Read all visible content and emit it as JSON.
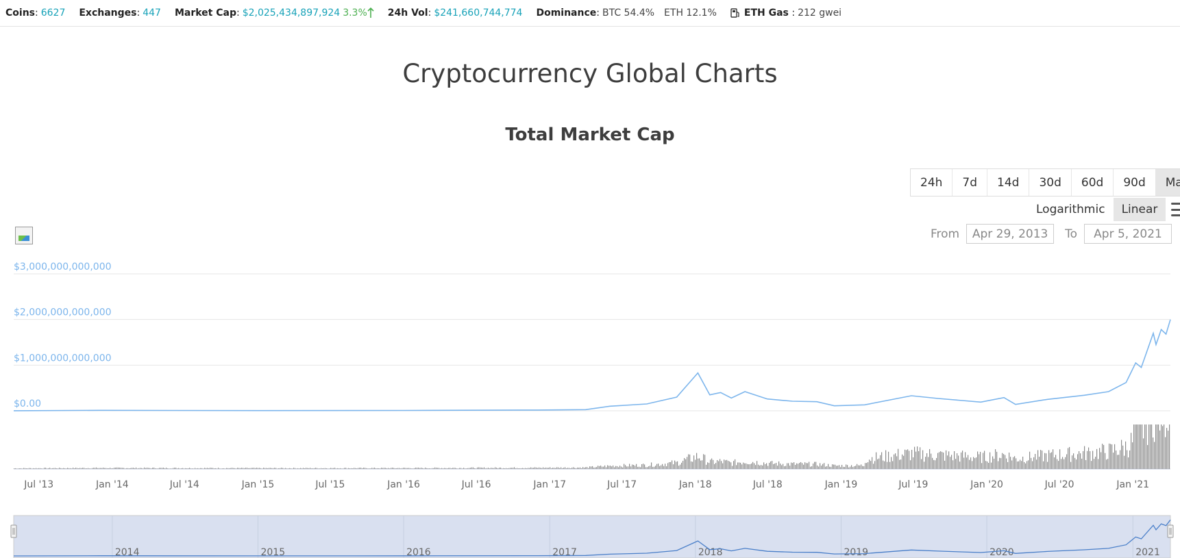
{
  "stats": {
    "coins": {
      "label": "Coins",
      "value": "6627"
    },
    "exchanges": {
      "label": "Exchanges",
      "value": "447"
    },
    "market_cap": {
      "label": "Market Cap",
      "value": "$2,025,434,897,924",
      "change": "3.3%"
    },
    "vol": {
      "label": "24h Vol",
      "value": "$241,660,744,774"
    },
    "dominance": {
      "label": "Dominance",
      "btc": "BTC 54.4%",
      "eth": "ETH 12.1%"
    },
    "gas": {
      "label": "ETH Gas",
      "value": "212 gwei"
    }
  },
  "page_title": "Cryptocurrency Global Charts",
  "ranges": [
    "24h",
    "7d",
    "14d",
    "30d",
    "60d",
    "90d",
    "Max"
  ],
  "active_range": "Max",
  "scale": {
    "log": "Logarithmic",
    "linear": "Linear",
    "active": "linear"
  },
  "date_range": {
    "from_label": "From",
    "from": "Apr 29, 2013",
    "to_label": "To",
    "to": "Apr 5, 2021"
  },
  "colors": {
    "line": "#7cb5ec",
    "volume": "#8a8a8a",
    "accent": "#17a2b8",
    "up": "#4caf50"
  },
  "chart_data": {
    "type": "line",
    "title": "Total Market Cap",
    "y_ticks": [
      "$0.00",
      "$1,000,000,000,000",
      "$2,000,000,000,000",
      "$3,000,000,000,000"
    ],
    "ylim": [
      0,
      3000000000000
    ],
    "x_ticks": [
      "Jul '13",
      "Jan '14",
      "Jul '14",
      "Jan '15",
      "Jul '15",
      "Jan '16",
      "Jul '16",
      "Jan '17",
      "Jul '17",
      "Jan '18",
      "Jul '18",
      "Jan '19",
      "Jul '19",
      "Jan '20",
      "Jul '20",
      "Jan '21"
    ],
    "navigator_ticks": [
      "2014",
      "2015",
      "2016",
      "2017",
      "2018",
      "2019",
      "2020",
      "2021"
    ],
    "series": [
      {
        "name": "Total Market Cap",
        "x": [
          "2013-04-29",
          "2013-12-01",
          "2014-06-01",
          "2015-01-01",
          "2016-01-01",
          "2016-12-01",
          "2017-04-01",
          "2017-06-01",
          "2017-09-01",
          "2017-11-15",
          "2018-01-07",
          "2018-02-06",
          "2018-03-05",
          "2018-04-01",
          "2018-05-05",
          "2018-06-30",
          "2018-09-01",
          "2018-11-01",
          "2018-12-15",
          "2019-03-01",
          "2019-06-26",
          "2019-09-01",
          "2019-12-17",
          "2020-02-13",
          "2020-03-13",
          "2020-06-01",
          "2020-09-01",
          "2020-11-01",
          "2020-12-15",
          "2021-01-08",
          "2021-01-22",
          "2021-02-21",
          "2021-02-28",
          "2021-03-13",
          "2021-03-25",
          "2021-04-05"
        ],
        "values": [
          1500000000,
          10000000000,
          8000000000,
          5000000000,
          7000000000,
          17000000000,
          26000000000,
          100000000000,
          150000000000,
          300000000000,
          830000000000,
          350000000000,
          400000000000,
          280000000000,
          420000000000,
          260000000000,
          210000000000,
          200000000000,
          110000000000,
          130000000000,
          330000000000,
          270000000000,
          190000000000,
          290000000000,
          140000000000,
          250000000000,
          340000000000,
          420000000000,
          620000000000,
          1050000000000,
          950000000000,
          1700000000000,
          1450000000000,
          1780000000000,
          1680000000000,
          2000000000000
        ]
      }
    ]
  }
}
